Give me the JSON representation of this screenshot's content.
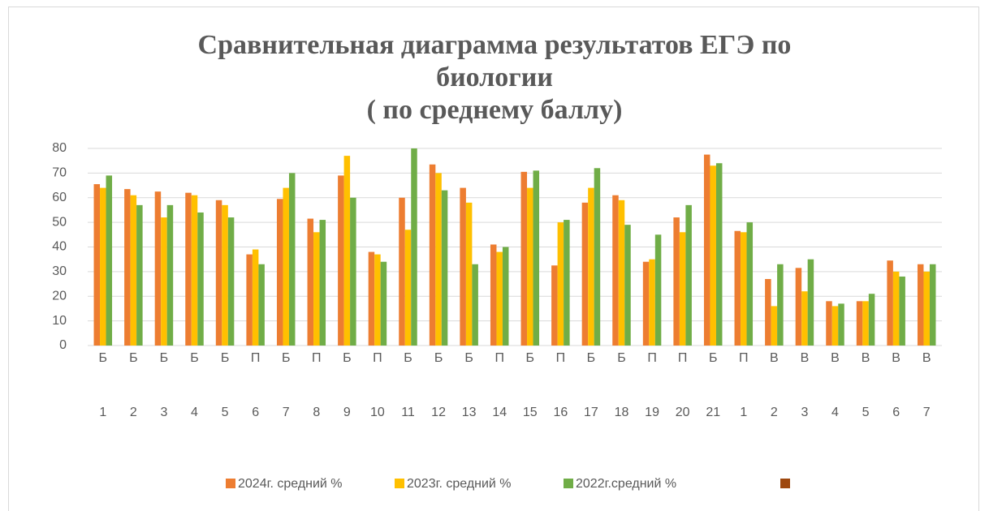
{
  "chart_data": {
    "type": "bar",
    "title": "Сравнительная диаграмма результатов ЕГЭ по биологии",
    "subtitle": "( по среднему баллу)",
    "category_levels": [
      "Б",
      "Б",
      "Б",
      "Б",
      "Б",
      "П",
      "Б",
      "П",
      "Б",
      "П",
      "Б",
      "Б",
      "Б",
      "П",
      "Б",
      "П",
      "Б",
      "Б",
      "П",
      "П",
      "Б",
      "П",
      "В",
      "В",
      "В",
      "В",
      "В",
      "В"
    ],
    "categories": [
      "1",
      "2",
      "3",
      "4",
      "5",
      "6",
      "7",
      "8",
      "9",
      "10",
      "11",
      "12",
      "13",
      "14",
      "15",
      "16",
      "17",
      "18",
      "19",
      "20",
      "21",
      "1",
      "2",
      "3",
      "4",
      "5",
      "6",
      "7"
    ],
    "series": [
      {
        "name": "2024г. средний %",
        "color": "#ed7d31",
        "values": [
          65.5,
          63.5,
          62.5,
          62,
          59,
          37,
          59.5,
          51.5,
          69,
          38,
          60,
          73.5,
          64,
          41,
          70.5,
          32.5,
          58,
          61,
          34,
          52,
          77.5,
          46.5,
          27,
          31.5,
          18,
          18,
          34.5,
          33
        ]
      },
      {
        "name": "2023г. средний %",
        "color": "#ffc000",
        "values": [
          64,
          61,
          52,
          61,
          57,
          39,
          64,
          46,
          77,
          37,
          47,
          70,
          58,
          38,
          64,
          50,
          64,
          59,
          35,
          46,
          73,
          46,
          16,
          22,
          16,
          18,
          30,
          30
        ]
      },
      {
        "name": "2022г.средний %",
        "color": "#70ad47",
        "values": [
          69,
          57,
          57,
          54,
          52,
          33,
          70,
          51,
          60,
          34,
          80,
          63,
          33,
          40,
          71,
          51,
          72,
          49,
          45,
          57,
          74,
          50,
          33,
          35,
          17,
          21,
          28,
          33
        ]
      }
    ],
    "ylim": [
      0,
      80
    ],
    "yticks": [
      0,
      10,
      20,
      30,
      40,
      50,
      60,
      70,
      80
    ],
    "grid": true
  }
}
